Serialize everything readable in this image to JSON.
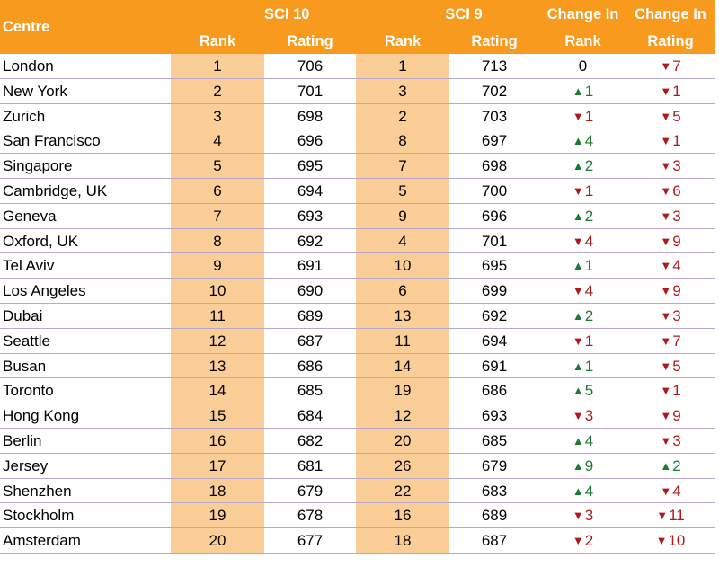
{
  "header": {
    "centre": "Centre",
    "sci10": "SCI 10",
    "sci9": "SCI 9",
    "rank": "Rank",
    "rating": "Rating",
    "change_in": "Change In",
    "change_rank": "Rank",
    "change_rating": "Rating"
  },
  "colors": {
    "header_bg": "#f79a1e",
    "rank_column_bg": "#fbcd97",
    "up": "#1d7a33",
    "down": "#b0191c"
  },
  "rows": [
    {
      "centre": "London",
      "rank10": "1",
      "rating10": "706",
      "rank9": "1",
      "rating9": "713",
      "rank_change": {
        "dir": "none",
        "value": "0"
      },
      "rating_change": {
        "dir": "down",
        "value": "7"
      }
    },
    {
      "centre": "New York",
      "rank10": "2",
      "rating10": "701",
      "rank9": "3",
      "rating9": "702",
      "rank_change": {
        "dir": "up",
        "value": "1"
      },
      "rating_change": {
        "dir": "down",
        "value": "1"
      }
    },
    {
      "centre": "Zurich",
      "rank10": "3",
      "rating10": "698",
      "rank9": "2",
      "rating9": "703",
      "rank_change": {
        "dir": "down",
        "value": "1"
      },
      "rating_change": {
        "dir": "down",
        "value": "5"
      }
    },
    {
      "centre": "San Francisco",
      "rank10": "4",
      "rating10": "696",
      "rank9": "8",
      "rating9": "697",
      "rank_change": {
        "dir": "up",
        "value": "4"
      },
      "rating_change": {
        "dir": "down",
        "value": "1"
      }
    },
    {
      "centre": "Singapore",
      "rank10": "5",
      "rating10": "695",
      "rank9": "7",
      "rating9": "698",
      "rank_change": {
        "dir": "up",
        "value": "2"
      },
      "rating_change": {
        "dir": "down",
        "value": "3"
      }
    },
    {
      "centre": "Cambridge, UK",
      "rank10": "6",
      "rating10": "694",
      "rank9": "5",
      "rating9": "700",
      "rank_change": {
        "dir": "down",
        "value": "1"
      },
      "rating_change": {
        "dir": "down",
        "value": "6"
      }
    },
    {
      "centre": "Geneva",
      "rank10": "7",
      "rating10": "693",
      "rank9": "9",
      "rating9": "696",
      "rank_change": {
        "dir": "up",
        "value": "2"
      },
      "rating_change": {
        "dir": "down",
        "value": "3"
      }
    },
    {
      "centre": "Oxford, UK",
      "rank10": "8",
      "rating10": "692",
      "rank9": "4",
      "rating9": "701",
      "rank_change": {
        "dir": "down",
        "value": "4"
      },
      "rating_change": {
        "dir": "down",
        "value": "9"
      }
    },
    {
      "centre": "Tel Aviv",
      "rank10": "9",
      "rating10": "691",
      "rank9": "10",
      "rating9": "695",
      "rank_change": {
        "dir": "up",
        "value": "1"
      },
      "rating_change": {
        "dir": "down",
        "value": "4"
      }
    },
    {
      "centre": "Los Angeles",
      "rank10": "10",
      "rating10": "690",
      "rank9": "6",
      "rating9": "699",
      "rank_change": {
        "dir": "down",
        "value": "4"
      },
      "rating_change": {
        "dir": "down",
        "value": "9"
      }
    },
    {
      "centre": "Dubai",
      "rank10": "11",
      "rating10": "689",
      "rank9": "13",
      "rating9": "692",
      "rank_change": {
        "dir": "up",
        "value": "2"
      },
      "rating_change": {
        "dir": "down",
        "value": "3"
      }
    },
    {
      "centre": "Seattle",
      "rank10": "12",
      "rating10": "687",
      "rank9": "11",
      "rating9": "694",
      "rank_change": {
        "dir": "down",
        "value": "1"
      },
      "rating_change": {
        "dir": "down",
        "value": "7"
      }
    },
    {
      "centre": "Busan",
      "rank10": "13",
      "rating10": "686",
      "rank9": "14",
      "rating9": "691",
      "rank_change": {
        "dir": "up",
        "value": "1"
      },
      "rating_change": {
        "dir": "down",
        "value": "5"
      }
    },
    {
      "centre": "Toronto",
      "rank10": "14",
      "rating10": "685",
      "rank9": "19",
      "rating9": "686",
      "rank_change": {
        "dir": "up",
        "value": "5"
      },
      "rating_change": {
        "dir": "down",
        "value": "1"
      }
    },
    {
      "centre": "Hong Kong",
      "rank10": "15",
      "rating10": "684",
      "rank9": "12",
      "rating9": "693",
      "rank_change": {
        "dir": "down",
        "value": "3"
      },
      "rating_change": {
        "dir": "down",
        "value": "9"
      }
    },
    {
      "centre": "Berlin",
      "rank10": "16",
      "rating10": "682",
      "rank9": "20",
      "rating9": "685",
      "rank_change": {
        "dir": "up",
        "value": "4"
      },
      "rating_change": {
        "dir": "down",
        "value": "3"
      }
    },
    {
      "centre": "Jersey",
      "rank10": "17",
      "rating10": "681",
      "rank9": "26",
      "rating9": "679",
      "rank_change": {
        "dir": "up",
        "value": "9"
      },
      "rating_change": {
        "dir": "up",
        "value": "2"
      }
    },
    {
      "centre": "Shenzhen",
      "rank10": "18",
      "rating10": "679",
      "rank9": "22",
      "rating9": "683",
      "rank_change": {
        "dir": "up",
        "value": "4"
      },
      "rating_change": {
        "dir": "down",
        "value": "4"
      }
    },
    {
      "centre": "Stockholm",
      "rank10": "19",
      "rating10": "678",
      "rank9": "16",
      "rating9": "689",
      "rank_change": {
        "dir": "down",
        "value": "3"
      },
      "rating_change": {
        "dir": "down",
        "value": "11"
      }
    },
    {
      "centre": "Amsterdam",
      "rank10": "20",
      "rating10": "677",
      "rank9": "18",
      "rating9": "687",
      "rank_change": {
        "dir": "down",
        "value": "2"
      },
      "rating_change": {
        "dir": "down",
        "value": "10"
      }
    }
  ]
}
